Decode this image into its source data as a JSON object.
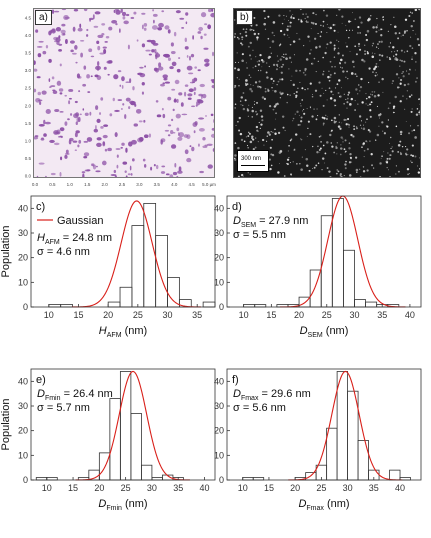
{
  "panels": {
    "a": {
      "label": "a)",
      "x_ticks": [
        "0.0",
        "0.5",
        "1.0",
        "1.5",
        "2.0",
        "2.5",
        "3.0",
        "3.5",
        "4.0",
        "4.5",
        "5.0 µm"
      ],
      "y_ticks": [
        "0.0",
        "0.5",
        "1.0",
        "1.5",
        "2.0",
        "2.5",
        "3.0",
        "3.5",
        "4.0",
        "4.5"
      ]
    },
    "b": {
      "label": "b)",
      "scalebar": "300 nm"
    }
  },
  "colors": {
    "particle_afm": "#8c4fa6",
    "fit": "#d9201a",
    "bar": "#333333"
  },
  "chart_data": [
    {
      "type": "bar",
      "panel": "c)",
      "legend": [
        "Gaussian"
      ],
      "annotation": [
        "H",
        "AFM",
        " = 24.8 nm",
        "σ = 4.6 nm"
      ],
      "xlabel": [
        "H",
        "AFM",
        " (nm)"
      ],
      "ylabel": "Population",
      "xlim": [
        7,
        38
      ],
      "ylim": [
        0,
        45
      ],
      "xticks": [
        10,
        15,
        20,
        25,
        30,
        35
      ],
      "yticks": [
        0,
        10,
        20,
        30,
        40
      ],
      "bin_width": 2,
      "bins": [
        10,
        12,
        14,
        16,
        18,
        20,
        22,
        24,
        26,
        28,
        30,
        32,
        34,
        36
      ],
      "values": [
        1,
        1,
        0,
        0,
        0,
        2,
        8,
        33,
        42,
        29,
        12,
        3,
        0,
        2
      ],
      "fit": {
        "mean": 24.8,
        "sigma": 2.6,
        "amp": 43
      }
    },
    {
      "type": "bar",
      "panel": "d)",
      "annotation": [
        "D",
        "SEM",
        " = 27.9 nm",
        "σ = 5.5 nm"
      ],
      "xlabel": [
        "D",
        "SEM",
        " (nm)"
      ],
      "ylabel": "",
      "xlim": [
        7,
        42
      ],
      "ylim": [
        0,
        45
      ],
      "xticks": [
        10,
        15,
        20,
        25,
        30,
        35,
        40
      ],
      "yticks": [
        0,
        10,
        20,
        30,
        40
      ],
      "bin_width": 2,
      "bins": [
        10,
        12,
        14,
        16,
        18,
        20,
        22,
        24,
        26,
        28,
        30,
        32,
        34,
        36,
        38
      ],
      "values": [
        1,
        1,
        0,
        1,
        1,
        4,
        15,
        37,
        44,
        23,
        3,
        2,
        1,
        1,
        0
      ],
      "fit": {
        "mean": 27.9,
        "sigma": 2.7,
        "amp": 45
      }
    },
    {
      "type": "bar",
      "panel": "e)",
      "annotation": [
        "D",
        "Fmin",
        " = 26.4 nm",
        "σ = 5.7 nm"
      ],
      "xlabel": [
        "D",
        "Fmin",
        " (nm)"
      ],
      "ylabel": "Population",
      "xlim": [
        7,
        42
      ],
      "ylim": [
        0,
        45
      ],
      "xticks": [
        10,
        15,
        20,
        25,
        30,
        35,
        40
      ],
      "yticks": [
        0,
        10,
        20,
        30,
        40
      ],
      "bin_width": 2,
      "bins": [
        8,
        10,
        12,
        14,
        16,
        18,
        20,
        22,
        24,
        26,
        28,
        30,
        32,
        34,
        36,
        38
      ],
      "values": [
        1,
        1,
        0,
        0,
        1,
        4,
        11,
        33,
        44,
        27,
        6,
        1,
        2,
        1,
        0,
        0
      ],
      "fit": {
        "mean": 26.4,
        "sigma": 2.6,
        "amp": 44
      }
    },
    {
      "type": "bar",
      "panel": "f)",
      "annotation": [
        "D",
        "Fmax",
        " = 29.6 nm",
        "σ = 5.6 nm"
      ],
      "xlabel": [
        "D",
        "Fmax",
        " (nm)"
      ],
      "ylabel": "",
      "xlim": [
        7,
        44
      ],
      "ylim": [
        0,
        45
      ],
      "xticks": [
        10,
        15,
        20,
        25,
        30,
        35,
        40
      ],
      "yticks": [
        0,
        10,
        20,
        30,
        40
      ],
      "bin_width": 2,
      "bins": [
        10,
        12,
        14,
        16,
        18,
        20,
        22,
        24,
        26,
        28,
        30,
        32,
        34,
        36,
        38,
        40
      ],
      "values": [
        1,
        1,
        0,
        0,
        0,
        1,
        3,
        6,
        21,
        44,
        36,
        16,
        4,
        0,
        4,
        1
      ],
      "fit": {
        "mean": 29.6,
        "sigma": 2.6,
        "amp": 44
      }
    }
  ]
}
